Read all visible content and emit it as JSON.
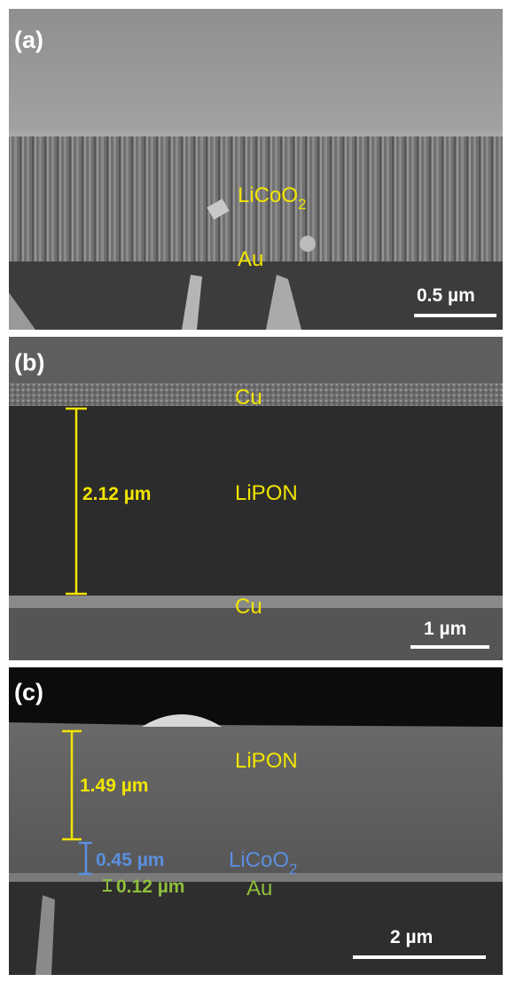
{
  "panels": [
    {
      "label": "(a)",
      "annotations": [
        {
          "text": "LiCoO",
          "subscript": "2"
        },
        {
          "text": "Au"
        }
      ],
      "scale_bar": "0.5 µm"
    },
    {
      "label": "(b)",
      "annotations": [
        {
          "text": "Cu"
        },
        {
          "text": "LiPON"
        },
        {
          "text": "Cu"
        }
      ],
      "measurements": [
        "2.12 µm"
      ],
      "scale_bar": "1 µm"
    },
    {
      "label": "(c)",
      "annotations": [
        {
          "text": "LiPON"
        },
        {
          "text": "LiCoO",
          "subscript": "2"
        },
        {
          "text": "Au"
        }
      ],
      "measurements": [
        "1.49 µm",
        "0.45 µm",
        "0.12 µm"
      ],
      "scale_bar": "2 µm"
    }
  ]
}
